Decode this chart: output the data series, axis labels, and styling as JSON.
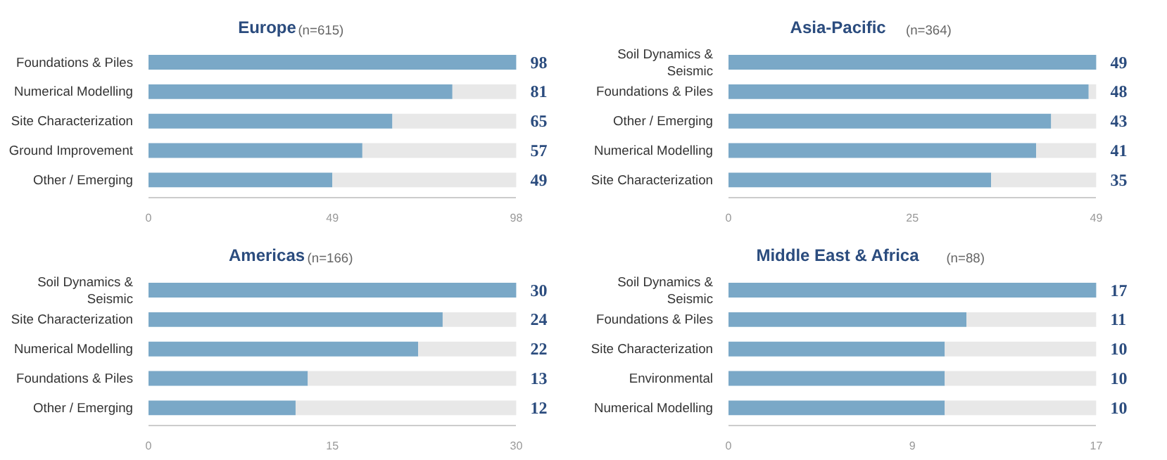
{
  "chart_data": [
    {
      "type": "bar",
      "orientation": "horizontal",
      "stacked": true,
      "title": "Europe",
      "subtitle": "(n=615)",
      "categories": [
        "Foundations & Piles",
        "Numerical Modelling",
        "Site Characterization",
        "Ground Improvement",
        "Other / Emerging"
      ],
      "series": [
        {
          "color": "#7aa8c7",
          "values": [
            98,
            81,
            65,
            57,
            49
          ],
          "value_labels": [
            "98",
            "81",
            "65",
            "57",
            "49"
          ]
        },
        {
          "color": "#e8e8e8",
          "values": [
            0,
            17,
            33,
            41,
            49
          ]
        }
      ],
      "xlim": [
        0,
        98
      ],
      "xticks": [
        0,
        49,
        98
      ],
      "grid": false
    },
    {
      "type": "bar",
      "orientation": "horizontal",
      "stacked": true,
      "title": "Asia-Pacific",
      "subtitle": "(n=364)",
      "categories": [
        "Soil Dynamics & Seismic",
        "Foundations & Piles",
        "Other / Emerging",
        "Numerical Modelling",
        "Site Characterization"
      ],
      "series": [
        {
          "color": "#7aa8c7",
          "values": [
            49,
            48,
            43,
            41,
            35
          ],
          "value_labels": [
            "49",
            "48",
            "43",
            "41",
            "35"
          ]
        },
        {
          "color": "#e8e8e8",
          "values": [
            0,
            1,
            6,
            8,
            14
          ]
        }
      ],
      "xlim": [
        0,
        49
      ],
      "xticks": [
        0,
        {
          "value": 24.5,
          "label": "25"
        },
        49
      ],
      "grid": false
    },
    {
      "type": "bar",
      "orientation": "horizontal",
      "stacked": true,
      "title": "Americas",
      "subtitle": "(n=166)",
      "categories": [
        "Soil Dynamics & Seismic",
        "Site Characterization",
        "Numerical Modelling",
        "Foundations & Piles",
        "Other / Emerging"
      ],
      "series": [
        {
          "color": "#7aa8c7",
          "values": [
            30,
            24,
            22,
            13,
            12
          ],
          "value_labels": [
            "30",
            "24",
            "22",
            "13",
            "12"
          ]
        },
        {
          "color": "#e8e8e8",
          "values": [
            0,
            6,
            8,
            17,
            18
          ]
        }
      ],
      "xlim": [
        0,
        30
      ],
      "xticks": [
        0,
        15,
        30
      ],
      "grid": false
    },
    {
      "type": "bar",
      "orientation": "horizontal",
      "stacked": true,
      "title": "Middle East & Africa",
      "subtitle": "(n=88)",
      "categories": [
        "Soil Dynamics & Seismic",
        "Foundations & Piles",
        "Site Characterization",
        "Environmental",
        "Numerical Modelling"
      ],
      "series": [
        {
          "color": "#7aa8c7",
          "values": [
            17,
            11,
            10,
            10,
            10
          ],
          "value_labels": [
            "17",
            "11",
            "10",
            "10",
            "10"
          ]
        },
        {
          "color": "#e8e8e8",
          "values": [
            0,
            6,
            7,
            7,
            7
          ]
        }
      ],
      "xlim": [
        0,
        17
      ],
      "xticks": [
        0,
        {
          "value": 8.5,
          "label": "9"
        },
        17
      ],
      "grid": false
    }
  ]
}
